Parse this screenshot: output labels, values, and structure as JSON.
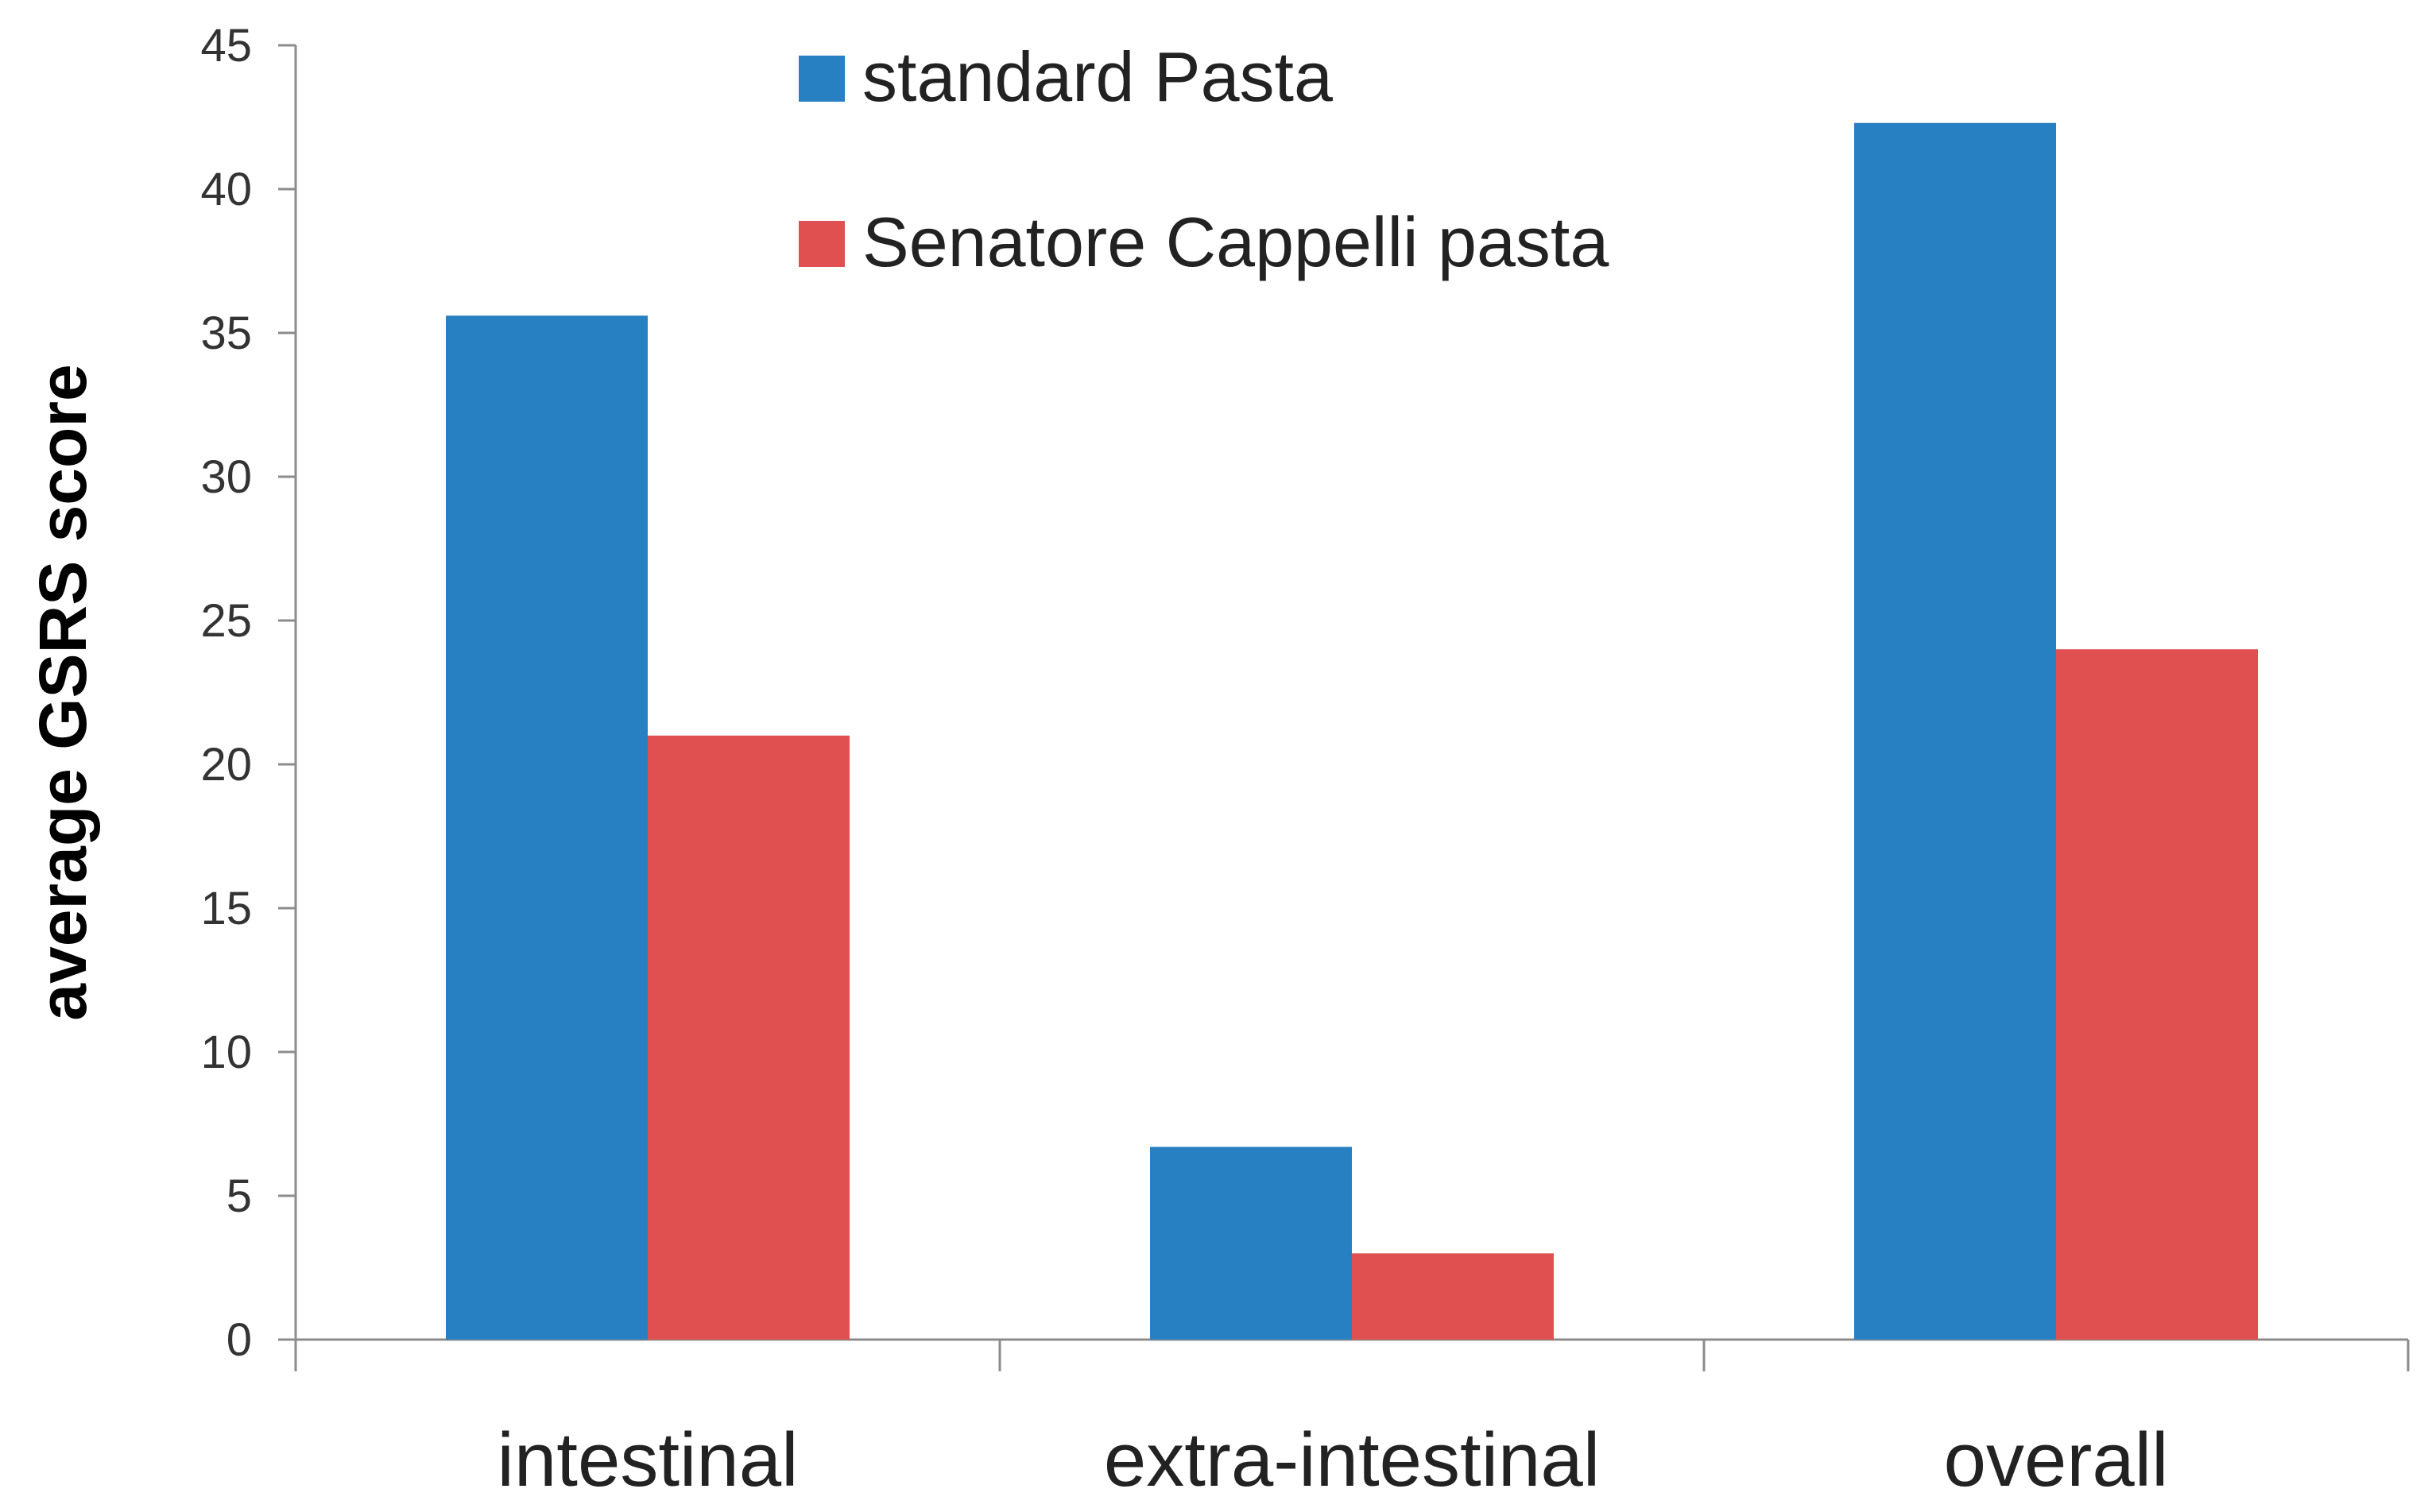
{
  "chart_data": {
    "type": "bar",
    "title": "",
    "xlabel": "",
    "ylabel": "average GSRS score",
    "categories": [
      "intestinal",
      "extra-intestinal",
      "overall"
    ],
    "series": [
      {
        "name": "standard Pasta",
        "color": "#2680C2",
        "values": [
          35.6,
          6.7,
          42.3
        ]
      },
      {
        "name": "Senatore Cappelli pasta",
        "color": "#E05050",
        "values": [
          21.0,
          3.0,
          24.0
        ]
      }
    ],
    "ylim": [
      0,
      45
    ],
    "yticks": [
      "0",
      "5",
      "10",
      "15",
      "20",
      "25",
      "30",
      "35",
      "40",
      "45"
    ],
    "grid": false,
    "legend_position": "top-center"
  }
}
